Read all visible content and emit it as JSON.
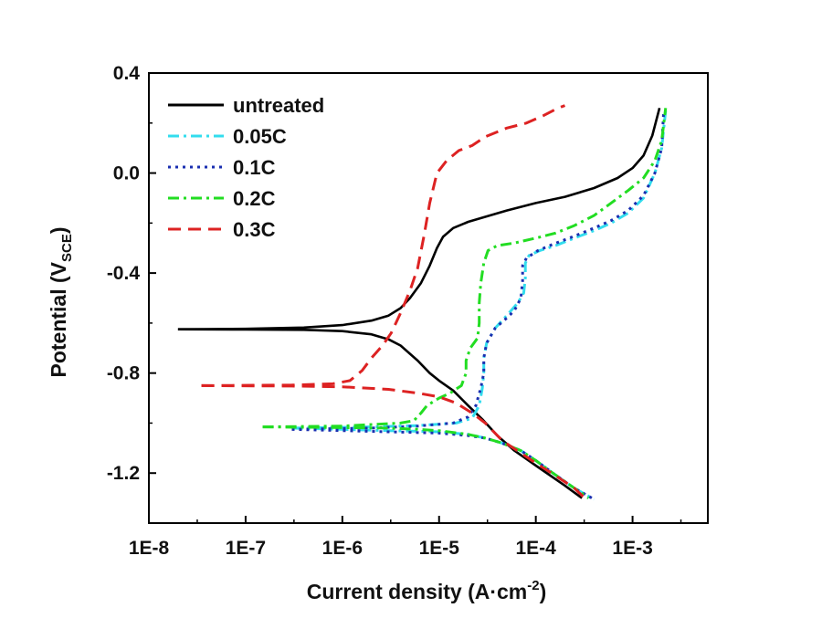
{
  "chart_data": {
    "type": "line",
    "title": "",
    "xlabel": "Current density (A·cm",
    "xlabel_sup": "-2",
    "xlabel_end": ")",
    "ylabel": "Potential (V",
    "ylabel_sub": "SCE",
    "ylabel_end": ")",
    "xscale": "log",
    "xlim": [
      1e-08,
      0.006
    ],
    "ylim": [
      -1.4,
      0.4
    ],
    "xticks": [
      {
        "value": 1e-08,
        "label": "1E-8"
      },
      {
        "value": 1e-07,
        "label": "1E-7"
      },
      {
        "value": 1e-06,
        "label": "1E-6"
      },
      {
        "value": 1e-05,
        "label": "1E-5"
      },
      {
        "value": 0.0001,
        "label": "1E-4"
      },
      {
        "value": 0.001,
        "label": "1E-3"
      }
    ],
    "yticks": [
      {
        "value": 0.4,
        "label": "0.4"
      },
      {
        "value": 0.0,
        "label": "0.0"
      },
      {
        "value": -0.4,
        "label": "-0.4"
      },
      {
        "value": -0.8,
        "label": "-0.8"
      },
      {
        "value": -1.2,
        "label": "-1.2"
      }
    ],
    "legend_position": "top-left",
    "series": [
      {
        "name": "untreated",
        "color": "#000000",
        "dash": "solid",
        "points": [
          [
            2e-08,
            -0.625
          ],
          [
            1e-07,
            -0.626
          ],
          [
            4e-07,
            -0.627
          ],
          [
            1e-06,
            -0.632
          ],
          [
            2e-06,
            -0.645
          ],
          [
            3e-06,
            -0.665
          ],
          [
            4e-06,
            -0.69
          ],
          [
            6e-06,
            -0.75
          ],
          [
            8e-06,
            -0.8
          ],
          [
            1e-05,
            -0.83
          ],
          [
            1.4e-05,
            -0.87
          ],
          [
            2e-05,
            -0.93
          ],
          [
            2.8e-05,
            -0.985
          ],
          [
            4e-05,
            -1.05
          ],
          [
            6e-05,
            -1.11
          ],
          [
            0.0001,
            -1.17
          ],
          [
            0.0002,
            -1.25
          ],
          [
            0.0003,
            -1.3
          ]
        ],
        "points2": [
          [
            2e-08,
            -0.625
          ],
          [
            1e-07,
            -0.623
          ],
          [
            4e-07,
            -0.618
          ],
          [
            1e-06,
            -0.608
          ],
          [
            2e-06,
            -0.59
          ],
          [
            3e-06,
            -0.57
          ],
          [
            4e-06,
            -0.54
          ],
          [
            5e-06,
            -0.5
          ],
          [
            6.5e-06,
            -0.44
          ],
          [
            8e-06,
            -0.37
          ],
          [
            9.5e-06,
            -0.3
          ],
          [
            1.1e-05,
            -0.255
          ],
          [
            1.4e-05,
            -0.22
          ],
          [
            2e-05,
            -0.195
          ],
          [
            3e-05,
            -0.175
          ],
          [
            5e-05,
            -0.15
          ],
          [
            0.0001,
            -0.12
          ],
          [
            0.0002,
            -0.095
          ],
          [
            0.0004,
            -0.06
          ],
          [
            0.0007,
            -0.02
          ],
          [
            0.001,
            0.02
          ],
          [
            0.0013,
            0.07
          ],
          [
            0.0016,
            0.15
          ],
          [
            0.0019,
            0.26
          ]
        ]
      },
      {
        "name": "0.05C",
        "color": "#33ddee",
        "dash": "dashdot",
        "points": [
          [
            3e-07,
            -1.02
          ],
          [
            1e-06,
            -1.025
          ],
          [
            3e-06,
            -1.03
          ],
          [
            1e-05,
            -1.035
          ],
          [
            2e-05,
            -1.045
          ],
          [
            3e-05,
            -1.06
          ],
          [
            4.5e-05,
            -1.08
          ],
          [
            7e-05,
            -1.11
          ],
          [
            0.0001,
            -1.15
          ],
          [
            0.00015,
            -1.2
          ],
          [
            0.00025,
            -1.26
          ],
          [
            0.0004,
            -1.305
          ]
        ],
        "points2": [
          [
            3e-07,
            -1.02
          ],
          [
            2e-06,
            -1.015
          ],
          [
            6e-06,
            -1.01
          ],
          [
            1.5e-05,
            -1.0
          ],
          [
            2.2e-05,
            -0.98
          ],
          [
            2.6e-05,
            -0.93
          ],
          [
            2.8e-05,
            -0.86
          ],
          [
            2.9e-05,
            -0.8
          ],
          [
            2.9e-05,
            -0.74
          ],
          [
            3.1e-05,
            -0.68
          ],
          [
            3.8e-05,
            -0.62
          ],
          [
            5e-05,
            -0.57
          ],
          [
            6.5e-05,
            -0.52
          ],
          [
            7.5e-05,
            -0.48
          ],
          [
            7.8e-05,
            -0.42
          ],
          [
            7.8e-05,
            -0.36
          ],
          [
            8.5e-05,
            -0.33
          ],
          [
            0.00011,
            -0.31
          ],
          [
            0.00016,
            -0.29
          ],
          [
            0.00025,
            -0.26
          ],
          [
            0.0004,
            -0.23
          ],
          [
            0.0006,
            -0.2
          ],
          [
            0.0009,
            -0.16
          ],
          [
            0.0013,
            -0.1
          ],
          [
            0.0017,
            0.0
          ],
          [
            0.002,
            0.1
          ],
          [
            0.0022,
            0.25
          ]
        ]
      },
      {
        "name": "0.1C",
        "color": "#1a2fb0",
        "dash": "dot",
        "points": [
          [
            3e-07,
            -1.025
          ],
          [
            1e-06,
            -1.03
          ],
          [
            3e-06,
            -1.035
          ],
          [
            1e-05,
            -1.04
          ],
          [
            2e-05,
            -1.05
          ],
          [
            3e-05,
            -1.06
          ],
          [
            4.5e-05,
            -1.08
          ],
          [
            7e-05,
            -1.11
          ],
          [
            0.0001,
            -1.15
          ],
          [
            0.00015,
            -1.2
          ],
          [
            0.00025,
            -1.26
          ],
          [
            0.00038,
            -1.3
          ]
        ],
        "points2": [
          [
            3e-07,
            -1.025
          ],
          [
            2e-06,
            -1.02
          ],
          [
            6e-06,
            -1.012
          ],
          [
            1.4e-05,
            -1.0
          ],
          [
            2e-05,
            -0.975
          ],
          [
            2.4e-05,
            -0.93
          ],
          [
            2.7e-05,
            -0.86
          ],
          [
            2.9e-05,
            -0.8
          ],
          [
            2.9e-05,
            -0.74
          ],
          [
            3.1e-05,
            -0.68
          ],
          [
            3.8e-05,
            -0.62
          ],
          [
            5e-05,
            -0.58
          ],
          [
            6e-05,
            -0.55
          ],
          [
            7e-05,
            -0.5
          ],
          [
            7.3e-05,
            -0.43
          ],
          [
            7.3e-05,
            -0.37
          ],
          [
            8e-05,
            -0.34
          ],
          [
            0.000105,
            -0.31
          ],
          [
            0.00015,
            -0.285
          ],
          [
            0.00024,
            -0.255
          ],
          [
            0.0004,
            -0.22
          ],
          [
            0.0006,
            -0.19
          ],
          [
            0.0009,
            -0.15
          ],
          [
            0.0013,
            -0.09
          ],
          [
            0.0017,
            0.0
          ],
          [
            0.002,
            0.1
          ],
          [
            0.0021,
            0.25
          ]
        ]
      },
      {
        "name": "0.2C",
        "color": "#22dd22",
        "dash": "dashdot",
        "points": [
          [
            1.5e-07,
            -1.015
          ],
          [
            1e-06,
            -1.018
          ],
          [
            3e-06,
            -1.02
          ],
          [
            6e-06,
            -1.025
          ],
          [
            1e-05,
            -1.03
          ],
          [
            2e-05,
            -1.045
          ],
          [
            3e-05,
            -1.06
          ],
          [
            4.5e-05,
            -1.08
          ],
          [
            7e-05,
            -1.11
          ],
          [
            0.0001,
            -1.15
          ],
          [
            0.00015,
            -1.2
          ],
          [
            0.00025,
            -1.26
          ],
          [
            0.00035,
            -1.3
          ]
        ],
        "points2": [
          [
            1.5e-07,
            -1.015
          ],
          [
            1e-06,
            -1.012
          ],
          [
            4e-06,
            -1.0
          ],
          [
            5.5e-06,
            -0.99
          ],
          [
            6.5e-06,
            -0.96
          ],
          [
            7.5e-06,
            -0.93
          ],
          [
            1e-05,
            -0.9
          ],
          [
            1.3e-05,
            -0.88
          ],
          [
            1.7e-05,
            -0.85
          ],
          [
            1.9e-05,
            -0.8
          ],
          [
            1.9e-05,
            -0.75
          ],
          [
            2.1e-05,
            -0.7
          ],
          [
            2.5e-05,
            -0.66
          ],
          [
            2.6e-05,
            -0.6
          ],
          [
            2.6e-05,
            -0.52
          ],
          [
            2.7e-05,
            -0.44
          ],
          [
            2.9e-05,
            -0.36
          ],
          [
            3.2e-05,
            -0.31
          ],
          [
            4e-05,
            -0.29
          ],
          [
            6e-05,
            -0.28
          ],
          [
            0.0001,
            -0.26
          ],
          [
            0.00016,
            -0.24
          ],
          [
            0.00025,
            -0.21
          ],
          [
            0.0004,
            -0.17
          ],
          [
            0.0006,
            -0.12
          ],
          [
            0.0009,
            -0.07
          ],
          [
            0.0013,
            -0.02
          ],
          [
            0.0017,
            0.05
          ],
          [
            0.002,
            0.13
          ],
          [
            0.0022,
            0.26
          ]
        ]
      },
      {
        "name": "0.3C",
        "color": "#dd2222",
        "dash": "dash",
        "points": [
          [
            3.5e-08,
            -0.85
          ],
          [
            3e-07,
            -0.852
          ],
          [
            1e-06,
            -0.855
          ],
          [
            3e-06,
            -0.865
          ],
          [
            6e-06,
            -0.88
          ],
          [
            1e-05,
            -0.895
          ],
          [
            1.5e-05,
            -0.92
          ],
          [
            2.2e-05,
            -0.96
          ],
          [
            3e-05,
            -1.0
          ],
          [
            4.5e-05,
            -1.07
          ],
          [
            7e-05,
            -1.12
          ],
          [
            0.0001,
            -1.16
          ],
          [
            0.00016,
            -1.21
          ],
          [
            0.00025,
            -1.26
          ],
          [
            0.00032,
            -1.3
          ]
        ],
        "points2": [
          [
            3.5e-08,
            -0.85
          ],
          [
            3e-07,
            -0.848
          ],
          [
            8e-07,
            -0.843
          ],
          [
            1.2e-06,
            -0.83
          ],
          [
            1.6e-06,
            -0.79
          ],
          [
            2e-06,
            -0.74
          ],
          [
            2.6e-06,
            -0.69
          ],
          [
            3.2e-06,
            -0.64
          ],
          [
            4e-06,
            -0.56
          ],
          [
            5e-06,
            -0.47
          ],
          [
            6e-06,
            -0.38
          ],
          [
            7e-06,
            -0.25
          ],
          [
            8e-06,
            -0.12
          ],
          [
            9.5e-06,
            0.0
          ],
          [
            1.2e-05,
            0.05
          ],
          [
            1.6e-05,
            0.09
          ],
          [
            2.2e-05,
            0.11
          ],
          [
            3e-05,
            0.145
          ],
          [
            5e-05,
            0.18
          ],
          [
            8e-05,
            0.2
          ],
          [
            0.00012,
            0.23
          ],
          [
            0.00017,
            0.26
          ],
          [
            0.0002,
            0.27
          ]
        ]
      }
    ]
  }
}
